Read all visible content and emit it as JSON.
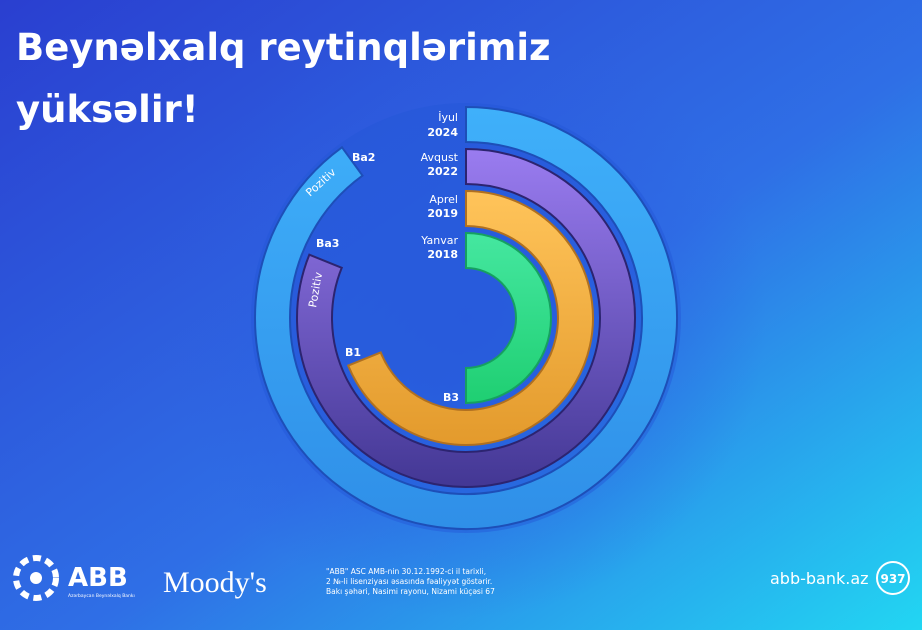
{
  "header": {
    "title_lines": [
      "Beynəlxalq reytinqlərimiz",
      "yüksəlir!"
    ]
  },
  "ratings": [
    {
      "month": "İyul",
      "year": 2024,
      "rating": "Ba2",
      "outlook": "Pozitiv"
    },
    {
      "month": "Avqust",
      "year": 2022,
      "rating": "Ba3",
      "outlook": "Pozitiv"
    },
    {
      "month": "Aprel",
      "year": 2019,
      "rating": "B1"
    },
    {
      "month": "Yanvar",
      "year": 2018,
      "rating": "B3"
    }
  ],
  "footer": {
    "logo": "ABB",
    "logo_sub": "Azərbaycan Beynəlxalq Bankı",
    "agency": "Moody's",
    "legal": [
      "\"ABB\" ASC AMB-nin 30.12.1992-ci il tarixli,",
      "2 №-li lisenziyası əsasında fəaliyyət göstərir.",
      "Bakı şəhəri, Nasimi rayonu, Nizami küçəsi 67"
    ],
    "website": "abb-bank.az",
    "phone": "937"
  }
}
